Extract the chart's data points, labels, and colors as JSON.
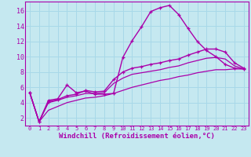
{
  "background_color": "#c5e8f0",
  "grid_color": "#a8d8e8",
  "line_color": "#aa00aa",
  "marker": "+",
  "xlabel": "Windchill (Refroidissement éolien,°C)",
  "ylabel_ticks": [
    2,
    4,
    6,
    8,
    10,
    12,
    14,
    16
  ],
  "xlim": [
    -0.5,
    23.5
  ],
  "ylim": [
    1.0,
    17.2
  ],
  "lines": [
    {
      "x": [
        0,
        1,
        2,
        3,
        4,
        5,
        6,
        7,
        8,
        9,
        10,
        11,
        12,
        13,
        14,
        15,
        16,
        17,
        18,
        19,
        20,
        21,
        22,
        23
      ],
      "y": [
        5.3,
        1.5,
        4.3,
        4.5,
        6.3,
        5.3,
        5.5,
        5.1,
        5.1,
        5.2,
        9.9,
        12.1,
        13.9,
        15.9,
        16.4,
        16.7,
        15.5,
        13.7,
        12.0,
        10.8,
        10.0,
        9.0,
        8.5,
        8.4
      ],
      "has_markers": true,
      "linewidth": 1.0
    },
    {
      "x": [
        0,
        1,
        2,
        3,
        4,
        5,
        6,
        7,
        8,
        9,
        10,
        11,
        12,
        13,
        14,
        15,
        16,
        17,
        18,
        19,
        20,
        21,
        22,
        23
      ],
      "y": [
        5.3,
        1.5,
        4.1,
        4.4,
        4.9,
        5.1,
        5.6,
        5.4,
        5.5,
        7.0,
        8.0,
        8.5,
        8.7,
        9.0,
        9.2,
        9.5,
        9.7,
        10.2,
        10.6,
        11.0,
        11.0,
        10.6,
        9.2,
        8.5
      ],
      "has_markers": true,
      "linewidth": 1.0
    },
    {
      "x": [
        0,
        1,
        2,
        3,
        4,
        5,
        6,
        7,
        8,
        9,
        10,
        11,
        12,
        13,
        14,
        15,
        16,
        17,
        18,
        19,
        20,
        21,
        22,
        23
      ],
      "y": [
        5.3,
        1.5,
        4.0,
        4.3,
        4.7,
        4.9,
        5.2,
        5.2,
        5.3,
        6.5,
        7.2,
        7.7,
        7.9,
        8.1,
        8.3,
        8.6,
        8.8,
        9.2,
        9.5,
        9.8,
        9.9,
        9.7,
        8.8,
        8.4
      ],
      "has_markers": false,
      "linewidth": 0.9
    },
    {
      "x": [
        0,
        1,
        2,
        3,
        4,
        5,
        6,
        7,
        8,
        9,
        10,
        11,
        12,
        13,
        14,
        15,
        16,
        17,
        18,
        19,
        20,
        21,
        22,
        23
      ],
      "y": [
        5.3,
        1.5,
        3.0,
        3.5,
        4.0,
        4.3,
        4.6,
        4.7,
        4.9,
        5.2,
        5.6,
        6.0,
        6.3,
        6.6,
        6.9,
        7.1,
        7.4,
        7.6,
        7.9,
        8.1,
        8.3,
        8.3,
        8.4,
        8.4
      ],
      "has_markers": false,
      "linewidth": 0.9
    }
  ],
  "xtick_fontsize": 5.0,
  "ytick_fontsize": 6.0,
  "xlabel_fontsize": 6.5
}
